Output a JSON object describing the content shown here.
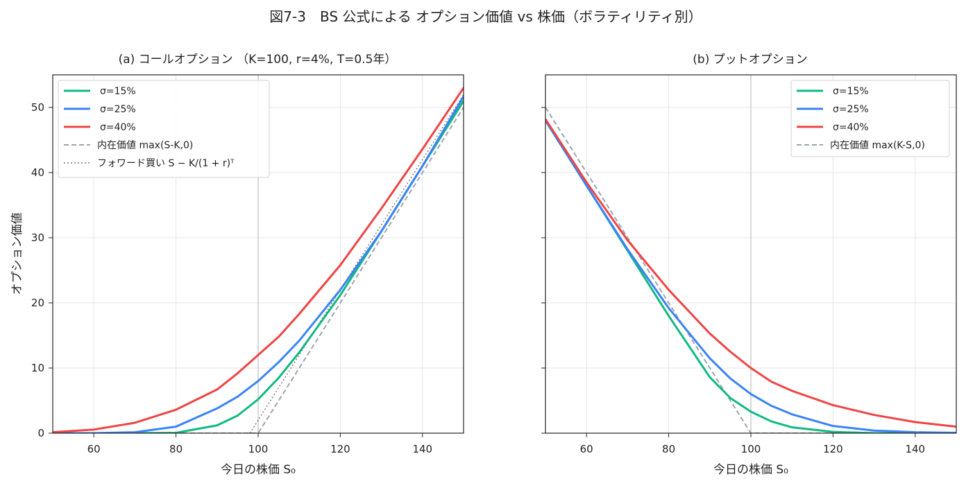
{
  "figure": {
    "suptitle": "図7-3　BS 公式による オプション価値 vs 株価（ボラティリティ別）"
  },
  "chart_data": [
    {
      "type": "line",
      "title": "(a) コールオプション （K=100, r=4%, T=0.5年）",
      "xlabel": "今日の株価 S₀",
      "ylabel": "オプション価値",
      "xlim": [
        50,
        150
      ],
      "ylim": [
        0,
        55
      ],
      "xticks": [
        "60",
        "80",
        "100",
        "120",
        "140"
      ],
      "yticks": [
        "0",
        "10",
        "20",
        "30",
        "40",
        "50"
      ],
      "grid": true,
      "legend_position": "upper-left",
      "strike_line_x": 100,
      "x": [
        50,
        60,
        70,
        80,
        90,
        95,
        100,
        105,
        110,
        120,
        130,
        140,
        150
      ],
      "series": [
        {
          "name": "σ=15%",
          "color": "#10b981",
          "style": "solid",
          "values": [
            0.0,
            0.0,
            0.0,
            0.05,
            1.2,
            2.7,
            5.2,
            8.5,
            12.4,
            21.2,
            31.0,
            41.0,
            51.0
          ]
        },
        {
          "name": "σ=25%",
          "color": "#3b82f6",
          "style": "solid",
          "values": [
            0.0,
            0.0,
            0.15,
            1.0,
            3.8,
            5.6,
            8.0,
            10.9,
            14.2,
            22.0,
            31.0,
            41.0,
            51.7
          ]
        },
        {
          "name": "σ=40%",
          "color": "#ef4444",
          "style": "solid",
          "values": [
            0.15,
            0.55,
            1.6,
            3.6,
            6.7,
            9.2,
            12.0,
            14.8,
            18.3,
            25.8,
            34.5,
            43.6,
            53.0
          ]
        },
        {
          "name": "内在価値 max(S-K,0)",
          "color": "#9ca3af",
          "style": "dashed",
          "values": [
            0,
            0,
            0,
            0,
            0,
            0,
            0,
            5,
            10,
            20,
            30,
            40,
            50
          ]
        },
        {
          "name": "フォワード買い S − K/(1 + r)ᵀ",
          "color": "#777777",
          "style": "dotted",
          "x": [
            98.0,
            150
          ],
          "values": [
            0,
            52
          ]
        }
      ]
    },
    {
      "type": "line",
      "title": "(b) プットオプション",
      "xlabel": "今日の株価 S₀",
      "ylabel": "",
      "xlim": [
        50,
        150
      ],
      "ylim": [
        0,
        55
      ],
      "xticks": [
        "60",
        "80",
        "100",
        "120",
        "140"
      ],
      "yticks": [
        "0",
        "10",
        "20",
        "30",
        "40",
        "50"
      ],
      "grid": true,
      "legend_position": "upper-right",
      "strike_line_x": 100,
      "x": [
        50,
        60,
        70,
        80,
        90,
        95,
        100,
        105,
        110,
        120,
        130,
        140,
        150
      ],
      "series": [
        {
          "name": "σ=15%",
          "color": "#10b981",
          "style": "solid",
          "values": [
            48.0,
            38.0,
            28.0,
            18.0,
            8.6,
            5.4,
            3.3,
            1.8,
            0.9,
            0.2,
            0.0,
            0.0,
            0.0
          ]
        },
        {
          "name": "σ=25%",
          "color": "#3b82f6",
          "style": "solid",
          "values": [
            48.0,
            38.0,
            28.2,
            19.2,
            11.5,
            8.4,
            6.0,
            4.2,
            2.9,
            1.1,
            0.4,
            0.15,
            0.05
          ]
        },
        {
          "name": "σ=40%",
          "color": "#ef4444",
          "style": "solid",
          "values": [
            48.2,
            38.5,
            29.6,
            22.0,
            15.3,
            12.5,
            10.0,
            7.9,
            6.5,
            4.3,
            2.8,
            1.7,
            1.0
          ]
        },
        {
          "name": "内在価値 max(K-S,0)",
          "color": "#9ca3af",
          "style": "dashed",
          "values": [
            50,
            40,
            30,
            20,
            10,
            5,
            0,
            0,
            0,
            0,
            0,
            0,
            0
          ]
        }
      ]
    }
  ]
}
